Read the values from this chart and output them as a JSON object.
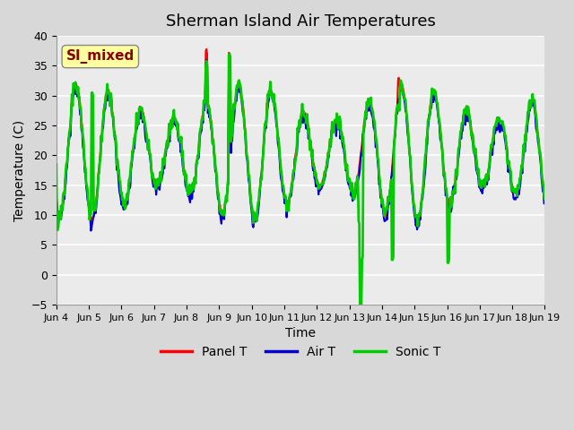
{
  "title": "Sherman Island Air Temperatures",
  "xlabel": "Time",
  "ylabel": "Temperature (C)",
  "ylim": [
    -5,
    40
  ],
  "yticks": [
    -5,
    0,
    5,
    10,
    15,
    20,
    25,
    30,
    35,
    40
  ],
  "xtick_labels": [
    "Jun 4",
    "Jun 5",
    "Jun 6",
    "Jun 7",
    "Jun 8",
    "Jun 9",
    "Jun 10",
    "Jun 11",
    "Jun 12",
    "Jun 13",
    "Jun 14",
    "Jun 15",
    "Jun 16",
    "Jun 17",
    "Jun 18",
    "Jun 19"
  ],
  "annotation_text": "SI_mixed",
  "annotation_color": "#8B0000",
  "annotation_bg": "#FFFFA0",
  "fig_bg": "#D8D8D8",
  "plot_bg": "#EBEBEB",
  "line_colors": {
    "panel": "#FF0000",
    "air": "#0000CC",
    "sonic": "#00CC00"
  },
  "line_widths": {
    "panel": 1.5,
    "air": 1.5,
    "sonic": 2.0
  },
  "legend_labels": [
    "Panel T",
    "Air T",
    "Sonic T"
  ],
  "title_fontsize": 13,
  "label_fontsize": 10,
  "n_days": 15,
  "n_per_day": 48
}
